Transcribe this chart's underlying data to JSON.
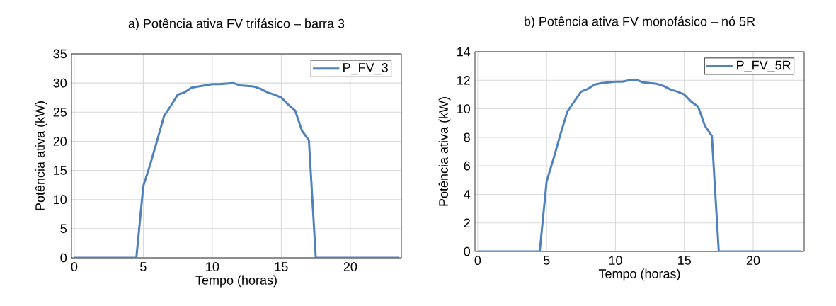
{
  "chart_data": [
    {
      "type": "line",
      "title": "a) Potência ativa FV trifásico – barra 3",
      "xlabel": "Tempo (horas)",
      "ylabel": "Potência ativa (kW)",
      "x": [
        0,
        0.5,
        1,
        1.5,
        2,
        2.5,
        3,
        3.5,
        4,
        4.5,
        5,
        5.5,
        6,
        6.5,
        7,
        7.5,
        8,
        8.5,
        9,
        9.5,
        10,
        10.5,
        11,
        11.5,
        12,
        12.5,
        13,
        13.5,
        14,
        14.5,
        15,
        15.5,
        16,
        16.5,
        17,
        17.5,
        18,
        18.5,
        19,
        19.5,
        20,
        20.5,
        21,
        21.5,
        22,
        22.5,
        23,
        23.5
      ],
      "series": [
        {
          "name": "P_FV_3",
          "color": "#4f81bd",
          "values": [
            0,
            0,
            0,
            0,
            0,
            0,
            0,
            0,
            0,
            0,
            12.3,
            16,
            20.1,
            24.3,
            26.1,
            28.0,
            28.4,
            29.2,
            29.4,
            29.6,
            29.8,
            29.8,
            29.9,
            30.0,
            29.6,
            29.5,
            29.4,
            29.0,
            28.4,
            28.0,
            27.5,
            26.3,
            25.3,
            21.8,
            20.2,
            0,
            0,
            0,
            0,
            0,
            0,
            0,
            0,
            0,
            0,
            0,
            0,
            0
          ]
        }
      ],
      "xlim": [
        -0.2,
        23.7
      ],
      "ylim": [
        0,
        35
      ],
      "xticks": [
        0,
        5,
        10,
        15,
        20
      ],
      "yticks": [
        0,
        5,
        10,
        15,
        20,
        25,
        30,
        35
      ],
      "grid": true,
      "legend": "top right",
      "marker": "none",
      "line_style": "solid"
    },
    {
      "type": "line",
      "title": "b) Potência ativa FV monofásico – nó 5R",
      "xlabel": "Tempo (horas)",
      "ylabel": "Potência ativa (kW)",
      "x": [
        0,
        0.5,
        1,
        1.5,
        2,
        2.5,
        3,
        3.5,
        4,
        4.5,
        5,
        5.5,
        6,
        6.5,
        7,
        7.5,
        8,
        8.5,
        9,
        9.5,
        10,
        10.5,
        11,
        11.5,
        12,
        12.5,
        13,
        13.5,
        14,
        14.5,
        15,
        15.5,
        16,
        16.5,
        17,
        17.5,
        18,
        18.5,
        19,
        19.5,
        20,
        20.5,
        21,
        21.5,
        22,
        22.5,
        23,
        23.5
      ],
      "series": [
        {
          "name": "P_FV_5R",
          "color": "#4f81bd",
          "values": [
            0,
            0,
            0,
            0,
            0,
            0,
            0,
            0,
            0,
            0,
            4.9,
            6.5,
            8.2,
            9.8,
            10.5,
            11.2,
            11.4,
            11.7,
            11.8,
            11.85,
            11.9,
            11.9,
            12.0,
            12.05,
            11.85,
            11.8,
            11.75,
            11.6,
            11.35,
            11.2,
            11.0,
            10.5,
            10.15,
            8.8,
            8.1,
            0,
            0,
            0,
            0,
            0,
            0,
            0,
            0,
            0,
            0,
            0,
            0,
            0
          ]
        }
      ],
      "xlim": [
        -0.2,
        23.7
      ],
      "ylim": [
        0,
        14
      ],
      "xticks": [
        0,
        5,
        10,
        15,
        20
      ],
      "yticks": [
        0,
        2,
        4,
        6,
        8,
        10,
        12,
        14
      ],
      "grid": true,
      "legend": "top right",
      "marker": "none",
      "line_style": "solid"
    }
  ]
}
